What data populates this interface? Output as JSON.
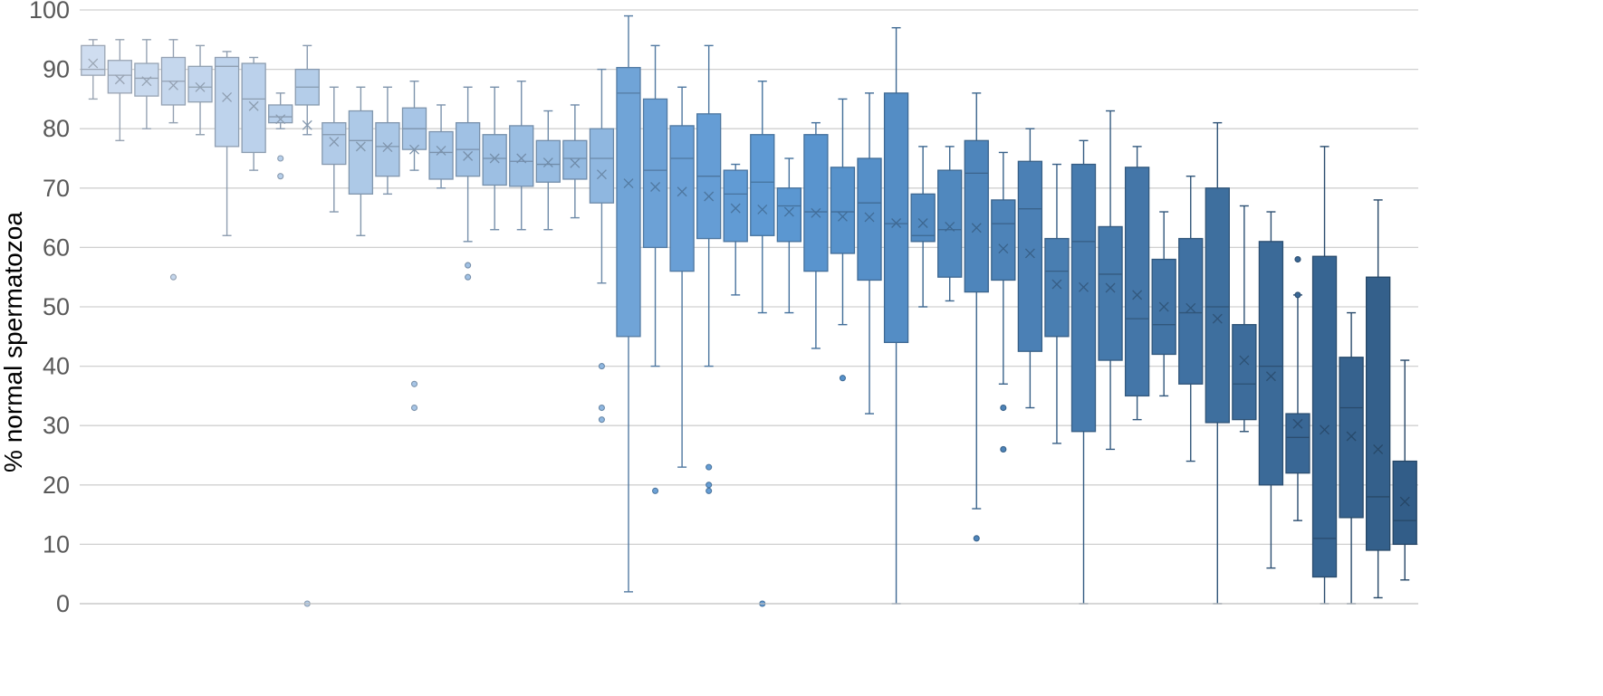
{
  "chart_data": {
    "type": "boxplot",
    "title": "",
    "xlabel": "",
    "ylabel": "% normal spermatozoa",
    "ylim": [
      0,
      100
    ],
    "yticks": [
      0,
      10,
      20,
      30,
      40,
      50,
      60,
      70,
      80,
      90,
      100
    ],
    "grid": true,
    "legend": "none",
    "colors": {
      "light": "#cfddf0",
      "mid": "#5b97d2",
      "dark": "#325d88",
      "grid": "#d0d0d0",
      "tick_text": "#595959"
    },
    "series": [
      {
        "min": 85,
        "q1": 89,
        "median": 90,
        "q3": 94,
        "max": 95,
        "mean": 91,
        "outliers": []
      },
      {
        "min": 78,
        "q1": 86,
        "median": 89,
        "q3": 91.5,
        "max": 95,
        "mean": 88.3,
        "outliers": []
      },
      {
        "min": 80,
        "q1": 85.5,
        "median": 88.5,
        "q3": 91,
        "max": 95,
        "mean": 88,
        "outliers": []
      },
      {
        "min": 81,
        "q1": 84,
        "median": 88,
        "q3": 92,
        "max": 95,
        "mean": 87.3,
        "outliers": [
          55
        ]
      },
      {
        "min": 79,
        "q1": 84.5,
        "median": 87,
        "q3": 90.5,
        "max": 94,
        "mean": 87,
        "outliers": []
      },
      {
        "min": 62,
        "q1": 77,
        "median": 90.5,
        "q3": 92,
        "max": 93,
        "mean": 85.3,
        "outliers": []
      },
      {
        "min": 73,
        "q1": 76,
        "median": 85,
        "q3": 91,
        "max": 92,
        "mean": 83.8,
        "outliers": []
      },
      {
        "min": 80,
        "q1": 81,
        "median": 82,
        "q3": 84,
        "max": 86,
        "mean": 81.6,
        "outliers": [
          75,
          72
        ]
      },
      {
        "min": 79,
        "q1": 84,
        "median": 87,
        "q3": 90,
        "max": 94,
        "mean": 80.6,
        "outliers": [
          0
        ]
      },
      {
        "min": 66,
        "q1": 74,
        "median": 79,
        "q3": 81,
        "max": 87,
        "mean": 77.8,
        "outliers": []
      },
      {
        "min": 62,
        "q1": 69,
        "median": 78,
        "q3": 83,
        "max": 87,
        "mean": 77,
        "outliers": []
      },
      {
        "min": 69,
        "q1": 72,
        "median": 77,
        "q3": 81,
        "max": 87,
        "mean": 76.9,
        "outliers": []
      },
      {
        "min": 73,
        "q1": 76.5,
        "median": 80,
        "q3": 83.5,
        "max": 88,
        "mean": 76.5,
        "outliers": [
          37,
          33
        ]
      },
      {
        "min": 70,
        "q1": 71.5,
        "median": 76,
        "q3": 79.5,
        "max": 84,
        "mean": 76.3,
        "outliers": []
      },
      {
        "min": 61,
        "q1": 72,
        "median": 76.5,
        "q3": 81,
        "max": 87,
        "mean": 75.4,
        "outliers": [
          57,
          55
        ]
      },
      {
        "min": 63,
        "q1": 70.5,
        "median": 75,
        "q3": 79,
        "max": 87,
        "mean": 75,
        "outliers": []
      },
      {
        "min": 63,
        "q1": 70.3,
        "median": 74.5,
        "q3": 80.5,
        "max": 88,
        "mean": 75,
        "outliers": []
      },
      {
        "min": 63,
        "q1": 71,
        "median": 74,
        "q3": 78,
        "max": 83,
        "mean": 74.3,
        "outliers": []
      },
      {
        "min": 65,
        "q1": 71.5,
        "median": 75,
        "q3": 78,
        "max": 84,
        "mean": 74.2,
        "outliers": []
      },
      {
        "min": 54,
        "q1": 67.5,
        "median": 75,
        "q3": 80,
        "max": 90,
        "mean": 72.3,
        "outliers": [
          40,
          33,
          31
        ]
      },
      {
        "min": 2,
        "q1": 45,
        "median": 86,
        "q3": 90.3,
        "max": 99,
        "mean": 70.8,
        "outliers": []
      },
      {
        "min": 40,
        "q1": 60,
        "median": 73,
        "q3": 85,
        "max": 94,
        "mean": 70.2,
        "outliers": [
          19
        ]
      },
      {
        "min": 23,
        "q1": 56,
        "median": 75,
        "q3": 80.5,
        "max": 87,
        "mean": 69.4,
        "outliers": []
      },
      {
        "min": 40,
        "q1": 61.5,
        "median": 72,
        "q3": 82.5,
        "max": 94,
        "mean": 68.6,
        "outliers": [
          23,
          20,
          19
        ]
      },
      {
        "min": 52,
        "q1": 61,
        "median": 69,
        "q3": 73,
        "max": 74,
        "mean": 66.6,
        "outliers": []
      },
      {
        "min": 49,
        "q1": 62,
        "median": 71,
        "q3": 79,
        "max": 88,
        "mean": 66.4,
        "outliers": [
          0
        ]
      },
      {
        "min": 49,
        "q1": 61,
        "median": 67,
        "q3": 70,
        "max": 75,
        "mean": 66,
        "outliers": []
      },
      {
        "min": 43,
        "q1": 56,
        "median": 66,
        "q3": 79,
        "max": 81,
        "mean": 65.8,
        "outliers": []
      },
      {
        "min": 47,
        "q1": 59,
        "median": 66,
        "q3": 73.5,
        "max": 85,
        "mean": 65.2,
        "outliers": [
          38
        ]
      },
      {
        "min": 32,
        "q1": 54.5,
        "median": 67.5,
        "q3": 75,
        "max": 86,
        "mean": 65.1,
        "outliers": []
      },
      {
        "min": 0,
        "q1": 44,
        "median": 64,
        "q3": 86,
        "max": 97,
        "mean": 64.1,
        "outliers": []
      },
      {
        "min": 50,
        "q1": 61,
        "median": 62,
        "q3": 69,
        "max": 77,
        "mean": 64.1,
        "outliers": []
      },
      {
        "min": 51,
        "q1": 55,
        "median": 63,
        "q3": 73,
        "max": 77,
        "mean": 63.5,
        "outliers": []
      },
      {
        "min": 16,
        "q1": 52.5,
        "median": 72.5,
        "q3": 78,
        "max": 86,
        "mean": 63.3,
        "outliers": [
          11
        ]
      },
      {
        "min": 37,
        "q1": 54.5,
        "median": 64,
        "q3": 68,
        "max": 76,
        "mean": 59.8,
        "outliers": [
          33,
          26
        ]
      },
      {
        "min": 33,
        "q1": 42.5,
        "median": 66.5,
        "q3": 74.5,
        "max": 80,
        "mean": 59,
        "outliers": []
      },
      {
        "min": 27,
        "q1": 45,
        "median": 56,
        "q3": 61.5,
        "max": 74,
        "mean": 53.8,
        "outliers": []
      },
      {
        "min": 0,
        "q1": 29,
        "median": 61,
        "q3": 74,
        "max": 78,
        "mean": 53.3,
        "outliers": []
      },
      {
        "min": 26,
        "q1": 41,
        "median": 55.5,
        "q3": 63.5,
        "max": 83,
        "mean": 53.2,
        "outliers": []
      },
      {
        "min": 31,
        "q1": 35,
        "median": 48,
        "q3": 73.5,
        "max": 77,
        "mean": 52,
        "outliers": []
      },
      {
        "min": 35,
        "q1": 42,
        "median": 47,
        "q3": 58,
        "max": 66,
        "mean": 50,
        "outliers": []
      },
      {
        "min": 24,
        "q1": 37,
        "median": 49,
        "q3": 61.5,
        "max": 72,
        "mean": 49.8,
        "outliers": []
      },
      {
        "min": 0,
        "q1": 30.5,
        "median": 50,
        "q3": 70,
        "max": 81,
        "mean": 48,
        "outliers": []
      },
      {
        "min": 29,
        "q1": 31,
        "median": 37,
        "q3": 47,
        "max": 67,
        "mean": 41,
        "outliers": []
      },
      {
        "min": 6,
        "q1": 20,
        "median": 40,
        "q3": 61,
        "max": 66,
        "mean": 38.3,
        "outliers": []
      },
      {
        "min": 14,
        "q1": 22,
        "median": 28,
        "q3": 32,
        "max": 52,
        "mean": 30.3,
        "outliers": [
          58,
          52
        ]
      },
      {
        "min": 0,
        "q1": 4.5,
        "median": 11,
        "q3": 58.5,
        "max": 77,
        "mean": 29.3,
        "outliers": []
      },
      {
        "min": 0,
        "q1": 14.5,
        "median": 33,
        "q3": 41.5,
        "max": 49,
        "mean": 28.2,
        "outliers": []
      },
      {
        "min": 1,
        "q1": 9,
        "median": 18,
        "q3": 55,
        "max": 68,
        "mean": 26,
        "outliers": []
      },
      {
        "min": 4,
        "q1": 10,
        "median": 14,
        "q3": 24,
        "max": 41,
        "mean": 17.2,
        "outliers": []
      }
    ]
  }
}
